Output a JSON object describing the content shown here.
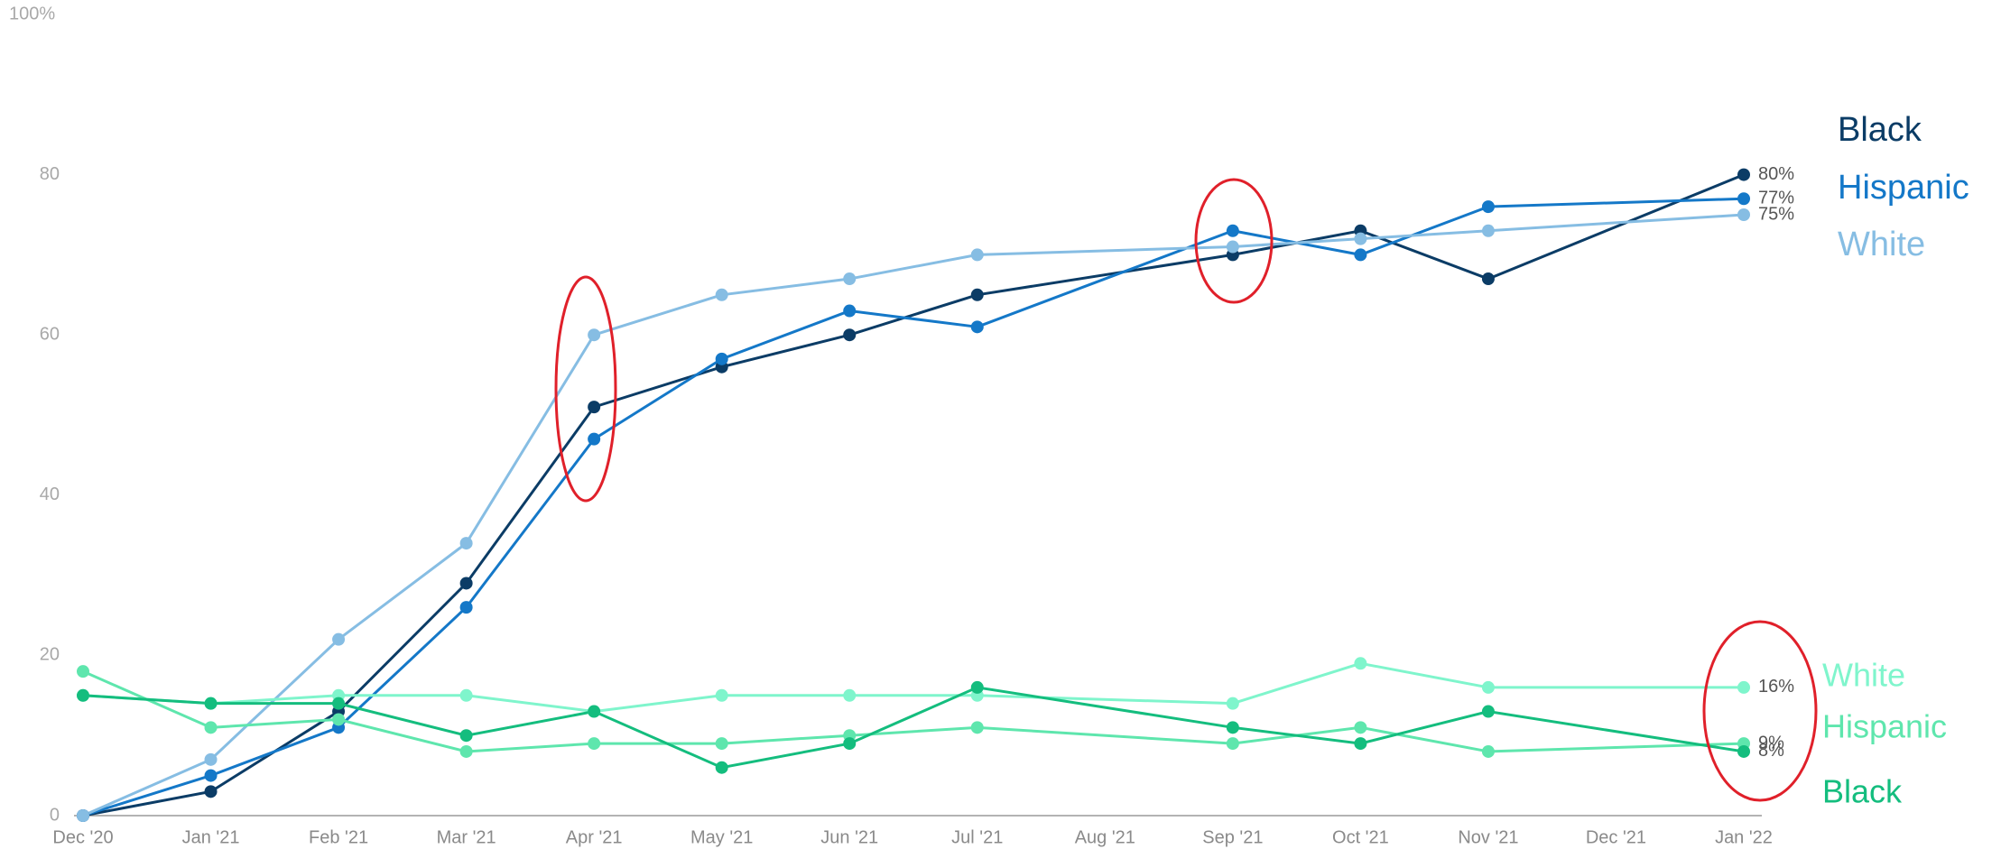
{
  "chart_data": {
    "type": "line",
    "categories": [
      "Dec '20",
      "Jan '21",
      "Feb '21",
      "Mar '21",
      "Apr '21",
      "May '21",
      "Jun '21",
      "Jul '21",
      "Aug '21",
      "Sep '21",
      "Oct '21",
      "Nov '21",
      "Dec '21",
      "Jan '22"
    ],
    "ylim": [
      0,
      100
    ],
    "yticks": [
      0,
      20,
      40,
      60,
      80,
      {
        "value": 100,
        "label": "100%"
      }
    ],
    "series": [
      {
        "name": "Black",
        "color": "#0b3c66",
        "values": [
          0,
          3,
          13,
          29,
          51,
          56,
          60,
          65,
          null,
          70,
          73,
          67,
          null,
          80
        ],
        "value_labels": [
          null,
          null,
          null,
          null,
          null,
          null,
          null,
          null,
          null,
          null,
          null,
          null,
          null,
          "80%"
        ]
      },
      {
        "name": "Hispanic",
        "color": "#1478c8",
        "values": [
          0,
          5,
          11,
          26,
          47,
          57,
          63,
          61,
          null,
          73,
          70,
          76,
          null,
          77
        ],
        "value_labels": [
          null,
          null,
          null,
          null,
          null,
          null,
          null,
          null,
          null,
          null,
          null,
          null,
          null,
          "77%"
        ]
      },
      {
        "name": "White",
        "color": "#86bde3",
        "values": [
          0,
          7,
          22,
          34,
          60,
          65,
          67,
          70,
          null,
          71,
          72,
          73,
          null,
          75
        ],
        "value_labels": [
          null,
          null,
          null,
          null,
          null,
          null,
          null,
          null,
          null,
          null,
          null,
          null,
          null,
          "75%"
        ]
      },
      {
        "name": "White",
        "color": "#7ff5cc",
        "values": [
          15,
          14,
          15,
          15,
          13,
          15,
          15,
          15,
          null,
          14,
          19,
          16,
          null,
          16
        ],
        "value_labels": [
          null,
          null,
          null,
          null,
          null,
          null,
          null,
          null,
          null,
          null,
          null,
          null,
          null,
          "16%"
        ]
      },
      {
        "name": "Hispanic",
        "color": "#5ee6ad",
        "values": [
          18,
          11,
          12,
          8,
          9,
          9,
          10,
          11,
          null,
          9,
          11,
          8,
          null,
          9
        ],
        "value_labels": [
          null,
          null,
          null,
          null,
          null,
          null,
          null,
          null,
          null,
          null,
          null,
          null,
          null,
          "9%"
        ]
      },
      {
        "name": "Black",
        "color": "#14bd7e",
        "values": [
          15,
          14,
          14,
          10,
          13,
          6,
          9,
          16,
          null,
          11,
          9,
          13,
          null,
          8
        ],
        "value_labels": [
          null,
          null,
          null,
          null,
          null,
          null,
          null,
          null,
          null,
          null,
          null,
          null,
          null,
          "8%"
        ]
      }
    ]
  }
}
